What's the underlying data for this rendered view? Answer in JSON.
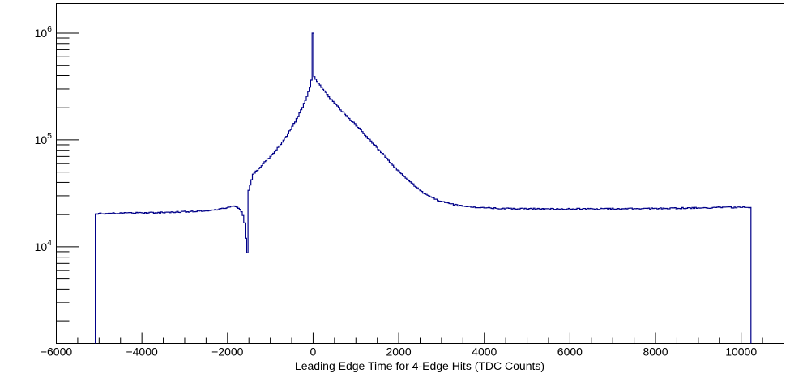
{
  "chart_data": {
    "type": "line",
    "title": "",
    "xlabel": "Leading Edge Time for 4-Edge Hits (TDC Counts)",
    "ylabel": "",
    "x_range": [
      -6000,
      11000
    ],
    "y_range": [
      1240,
      1890000
    ],
    "y_scale": "log",
    "grid": false,
    "legend": "none",
    "background_color": "#ffffff",
    "axis_color": "#000000",
    "line_color": "#000088",
    "x_major_ticks": [
      -6000,
      -4000,
      -2000,
      0,
      2000,
      4000,
      6000,
      8000,
      10000
    ],
    "x_tick_labels": [
      "−6000",
      "−4000",
      "−2000",
      "0",
      "2000",
      "4000",
      "6000",
      "8000",
      "10000"
    ],
    "x_minor_step": 500,
    "y_major_ticks": [
      10000,
      100000,
      1000000
    ],
    "y_tick_labels": [
      {
        "base": "10",
        "exp": "4"
      },
      {
        "base": "10",
        "exp": "5"
      },
      {
        "base": "10",
        "exp": "6"
      }
    ],
    "features": {
      "data_start_x": -5090,
      "data_end_x": 10230,
      "plateau_left_counts": 21000,
      "plateau_right_counts": 22800,
      "bump": {
        "x": -1820,
        "counts": 24000
      },
      "dip": {
        "x": -1552,
        "counts": 8800
      },
      "spike": {
        "x": 0,
        "counts": 1000000
      },
      "smooth_peak": {
        "x": 0,
        "counts": 410000
      }
    },
    "series": [
      {
        "name": "leading-edge-time-4edge-hits",
        "bin_width": 34,
        "anchors_x": [
          -5090,
          -4800,
          -4400,
          -4000,
          -3600,
          -3200,
          -2800,
          -2400,
          -2100,
          -1900,
          -1820,
          -1750,
          -1690,
          -1640,
          -1610,
          -1585,
          -1565,
          -1552,
          -1548,
          -1510,
          -1480,
          -1450,
          -1420,
          -1400,
          -1300,
          -1200,
          -1100,
          -1000,
          -900,
          -800,
          -700,
          -600,
          -500,
          -400,
          -300,
          -200,
          -120,
          -60,
          -25,
          -8,
          8,
          100,
          200,
          400,
          600,
          800,
          1000,
          1200,
          1400,
          1600,
          1800,
          2000,
          2200,
          2400,
          2600,
          2800,
          3000,
          3200,
          3400,
          3600,
          3800,
          4000,
          4500,
          5000,
          5500,
          6000,
          6500,
          7000,
          7500,
          8000,
          8500,
          9000,
          9500,
          10000,
          10230
        ],
        "anchors_y": [
          20400,
          20550,
          20650,
          20750,
          20900,
          21100,
          21400,
          21950,
          22800,
          23700,
          24000,
          23300,
          21800,
          19800,
          17500,
          14500,
          11000,
          8800,
          31000,
          33000,
          36000,
          40000,
          45000,
          48000,
          52500,
          58000,
          63500,
          69500,
          77500,
          87000,
          98000,
          112000,
          130000,
          152000,
          182000,
          222000,
          272000,
          330000,
          385000,
          410000,
          400000,
          355000,
          310000,
          245000,
          200000,
          165000,
          138000,
          113000,
          93000,
          76000,
          62000,
          51000,
          43000,
          36500,
          31500,
          28500,
          26500,
          25200,
          24400,
          23800,
          23400,
          23100,
          22800,
          22700,
          22600,
          22600,
          22650,
          22700,
          22750,
          22850,
          22950,
          23100,
          23300,
          23400,
          23400
        ]
      }
    ]
  }
}
